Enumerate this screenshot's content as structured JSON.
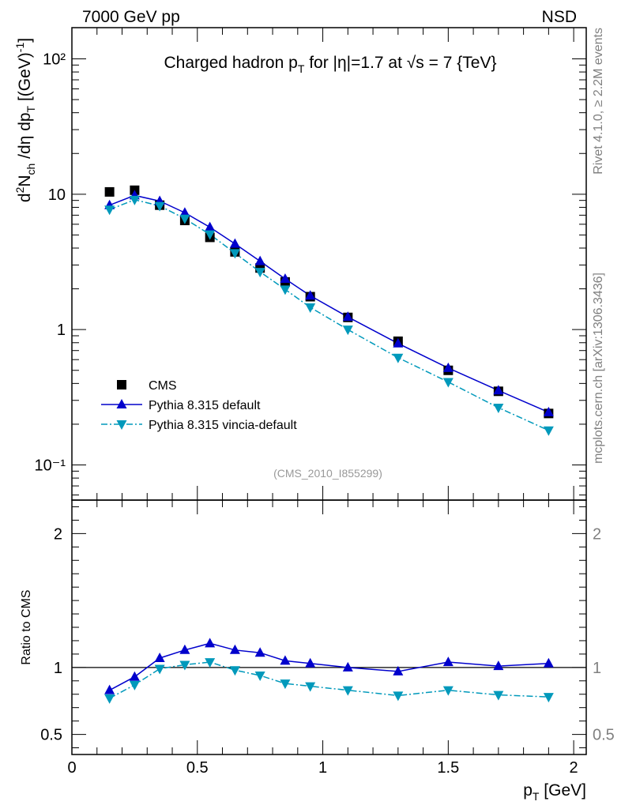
{
  "header": {
    "left": "7000 GeV pp",
    "right": "NSD"
  },
  "side_labels": {
    "rivet": "Rivet 4.1.0, ≥ 2.2M events",
    "mcplots": "mcplots.cern.ch [arXiv:1306.3436]"
  },
  "chart_data": {
    "type": "scatter",
    "title": "Charged hadron p_T for |η|=1.7 at √s = 7 {TeV}",
    "analysis_id": "(CMS_2010_I855299)",
    "xlabel": "p_T [GeV]",
    "ylabel": "d²N_ch/dη dp_T [(GeV)⁻¹]",
    "ratio_ylabel": "Ratio to CMS",
    "xlim": [
      0,
      2.05
    ],
    "ylim": [
      0.055,
      170
    ],
    "ratio_ylim": [
      0.35,
      2.25
    ],
    "x_ticks": [
      "0",
      "0.5",
      "1",
      "1.5",
      "2"
    ],
    "y_ticks": [
      "10⁻¹",
      "1",
      "10",
      "10²"
    ],
    "ratio_ticks": [
      "0.5",
      "1",
      "2"
    ],
    "x": [
      0.15,
      0.25,
      0.35,
      0.45,
      0.55,
      0.65,
      0.75,
      0.85,
      0.95,
      1.1,
      1.3,
      1.5,
      1.7,
      1.9
    ],
    "series": [
      {
        "name": "CMS",
        "marker": "square",
        "color": "#000000",
        "values": [
          10.4,
          10.7,
          8.3,
          6.4,
          4.8,
          3.75,
          2.85,
          2.25,
          1.75,
          1.23,
          0.82,
          0.5,
          0.35,
          0.24
        ]
      },
      {
        "name": "Pythia 8.315 default",
        "marker": "triangle-up",
        "line": "solid",
        "color": "#0000cc",
        "values": [
          8.3,
          9.8,
          8.9,
          7.3,
          5.7,
          4.3,
          3.2,
          2.37,
          1.78,
          1.24,
          0.79,
          0.52,
          0.355,
          0.245
        ],
        "ratio": [
          0.83,
          0.93,
          1.07,
          1.13,
          1.18,
          1.13,
          1.11,
          1.05,
          1.03,
          1.0,
          0.97,
          1.04,
          1.01,
          1.03
        ]
      },
      {
        "name": "Pythia 8.315 vincia-default",
        "marker": "triangle-down",
        "line": "dashdot",
        "color": "#0099bb",
        "values": [
          7.7,
          9.1,
          8.2,
          6.6,
          5.05,
          3.67,
          2.67,
          1.98,
          1.46,
          1.0,
          0.62,
          0.41,
          0.265,
          0.18
        ],
        "ratio": [
          0.77,
          0.87,
          0.99,
          1.02,
          1.04,
          0.98,
          0.94,
          0.88,
          0.86,
          0.83,
          0.79,
          0.83,
          0.795,
          0.78
        ]
      }
    ]
  }
}
